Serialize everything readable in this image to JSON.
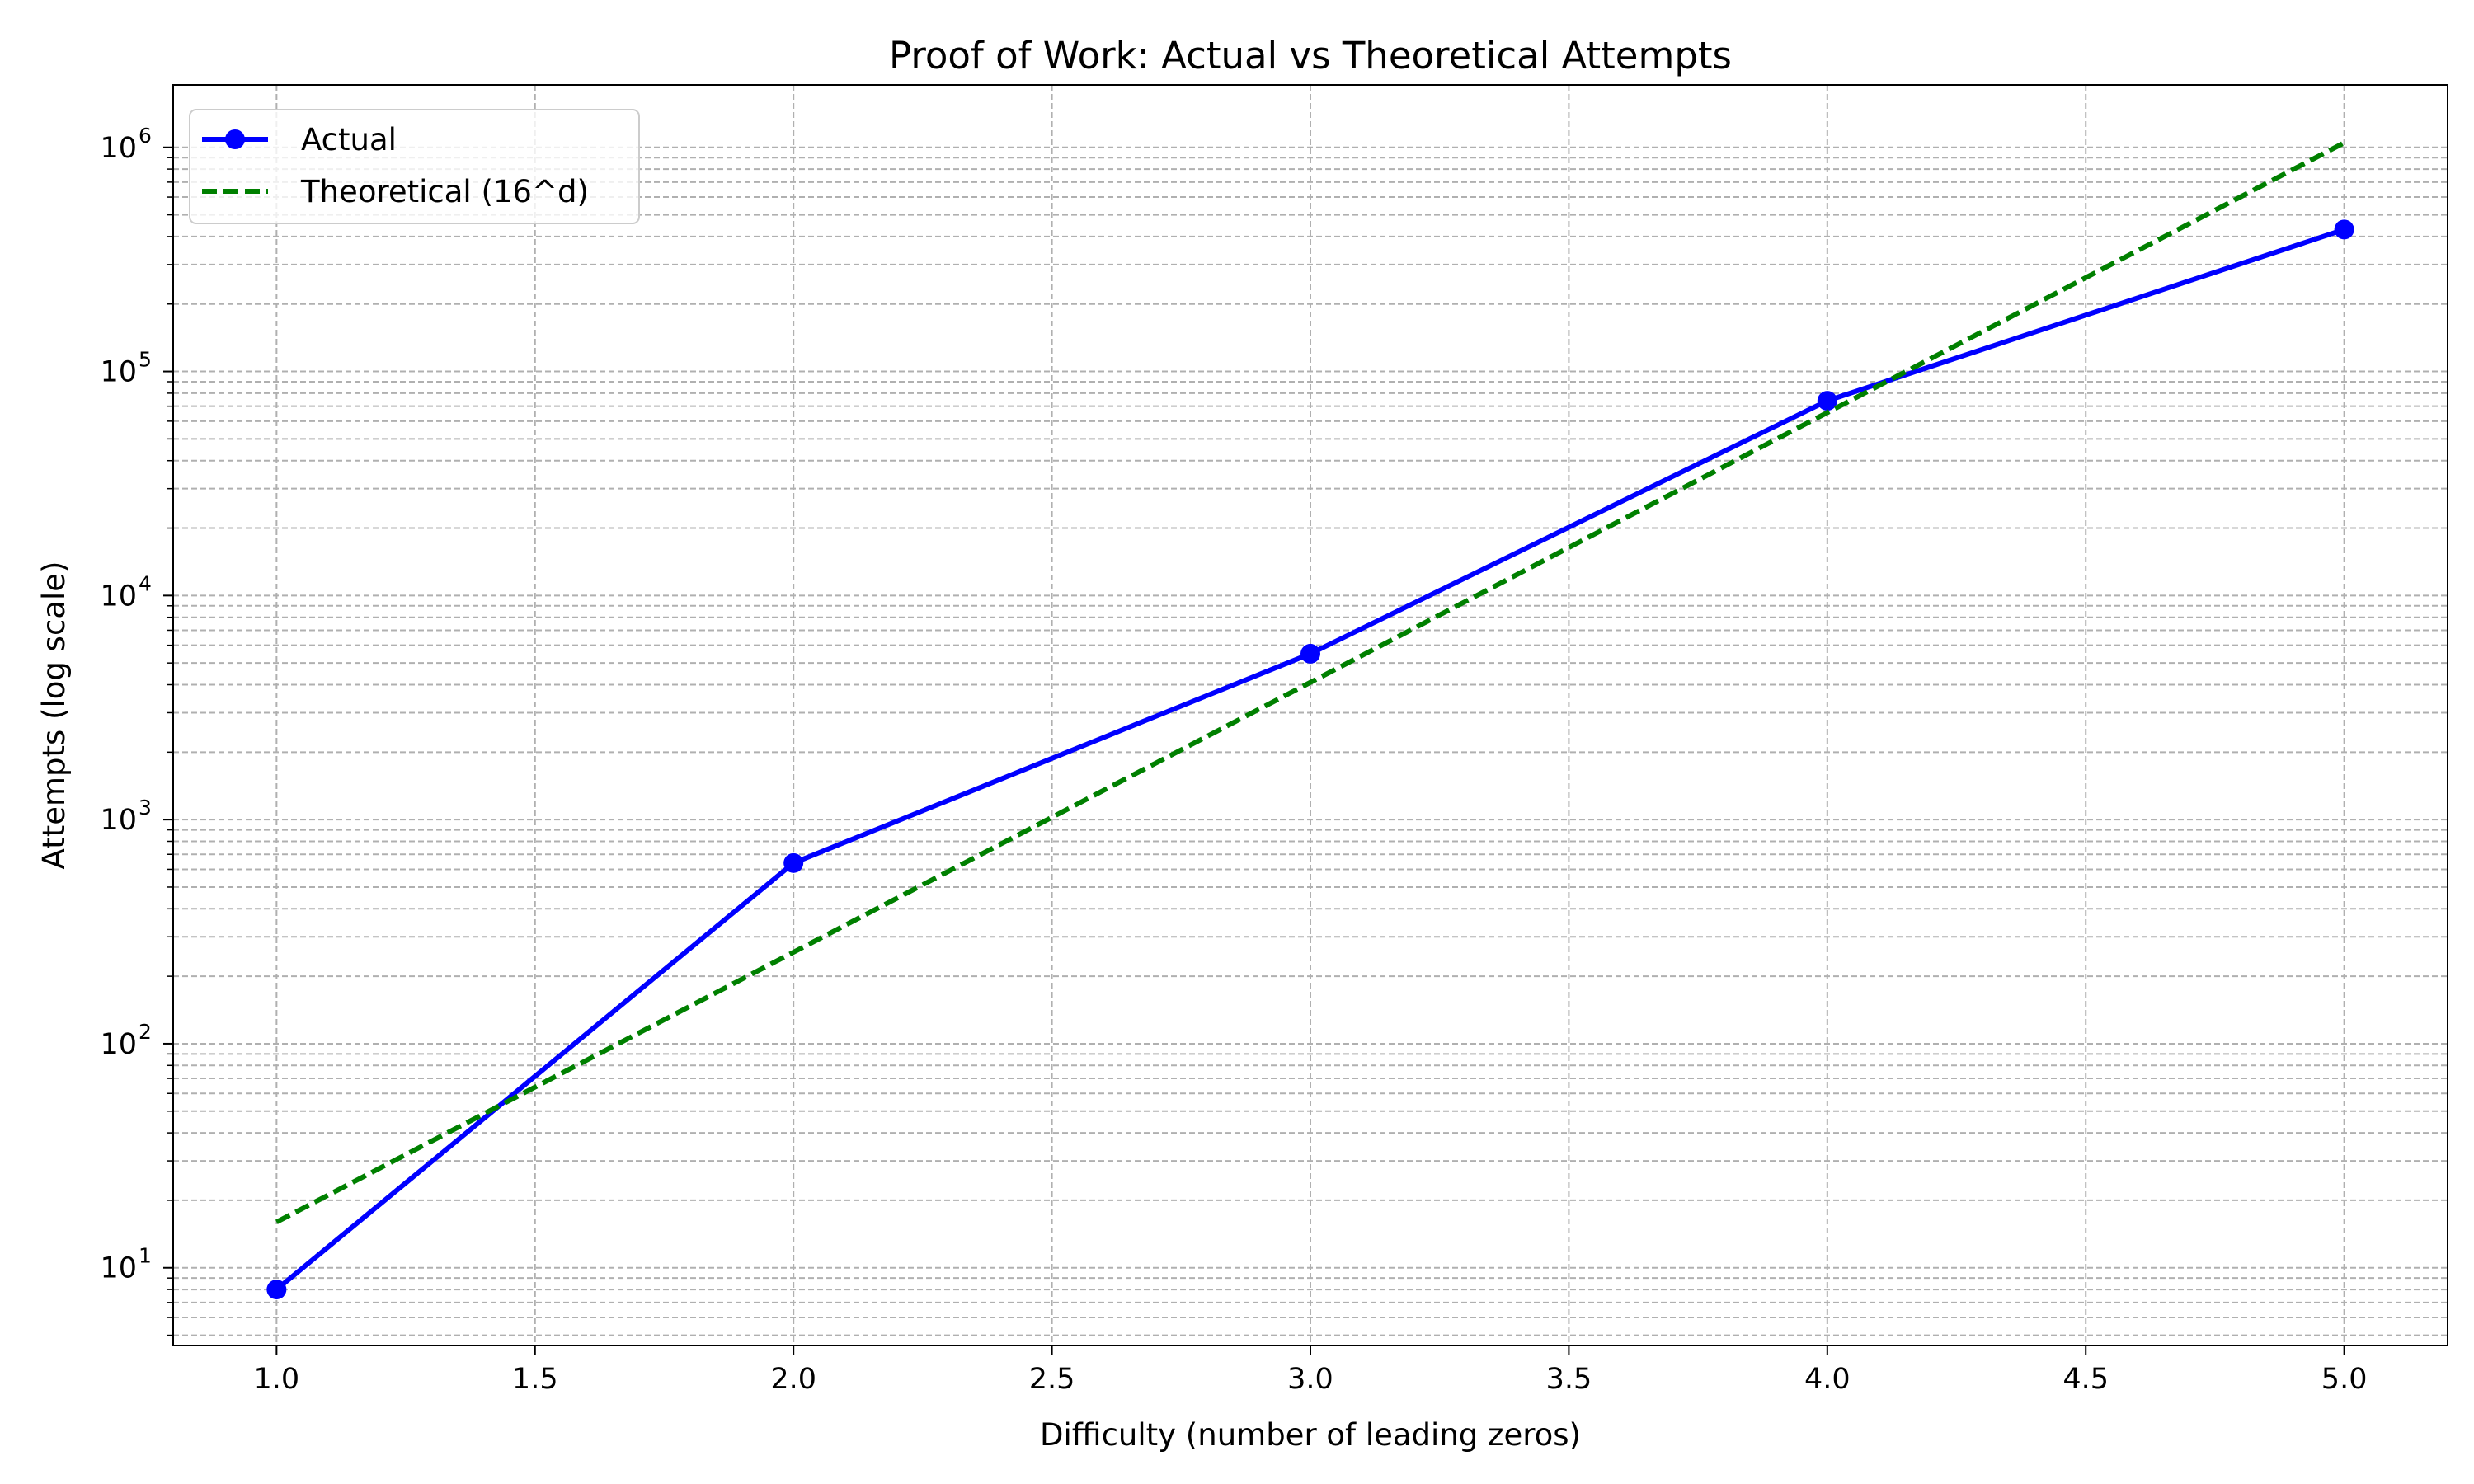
{
  "chart_data": {
    "type": "line",
    "title": "Proof of Work: Actual vs Theoretical Attempts",
    "xlabel": "Difficulty (number of leading zeros)",
    "ylabel": "Attempts (log scale)",
    "xscale": "linear",
    "yscale": "log",
    "xlim": [
      0.8,
      5.2
    ],
    "ylim": [
      4.5,
      1900000
    ],
    "grid": true,
    "legend_position": "top-left",
    "x_ticks": [
      "1.0",
      "1.5",
      "2.0",
      "2.5",
      "3.0",
      "3.5",
      "4.0",
      "4.5",
      "5.0"
    ],
    "y_ticks": [
      {
        "base": "10",
        "exp": "1"
      },
      {
        "base": "10",
        "exp": "2"
      },
      {
        "base": "10",
        "exp": "3"
      },
      {
        "base": "10",
        "exp": "4"
      },
      {
        "base": "10",
        "exp": "5"
      },
      {
        "base": "10",
        "exp": "6"
      }
    ],
    "x": [
      1,
      2,
      3,
      4,
      5
    ],
    "series": [
      {
        "name": "Actual",
        "values": [
          8,
          640,
          5500,
          74000,
          430000
        ],
        "color": "#0000ff",
        "style": "solid",
        "marker": "circle"
      },
      {
        "name": "Theoretical (16^d)",
        "values": [
          16,
          256,
          4096,
          65536,
          1048576
        ],
        "color": "#008000",
        "style": "dashed",
        "marker": "none"
      }
    ]
  }
}
